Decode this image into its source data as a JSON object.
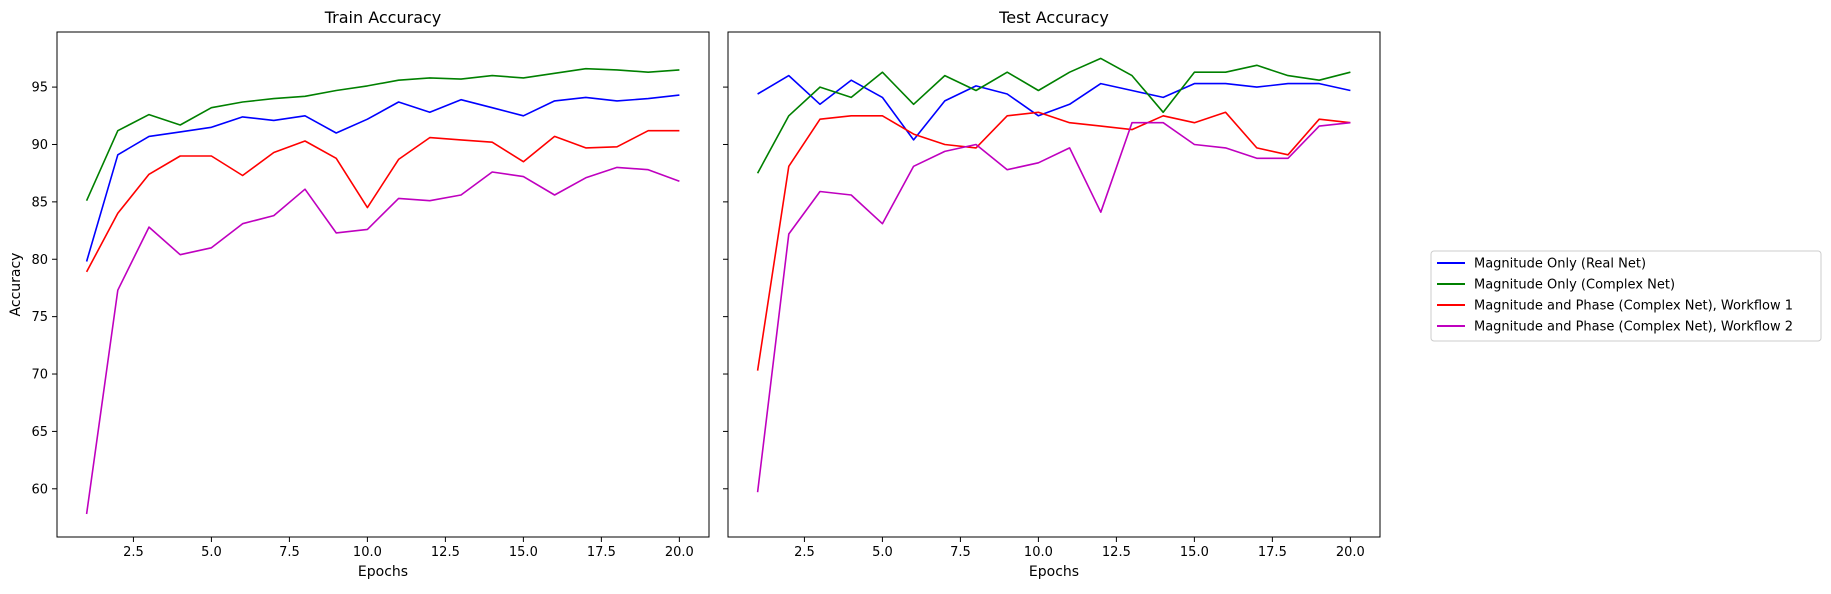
{
  "chart_data": [
    {
      "type": "line",
      "title": "Train Accuracy",
      "xlabel": "Epochs",
      "ylabel": "Accuracy",
      "xlim": [
        0.05,
        20.95
      ],
      "ylim": [
        55.8,
        99.8
      ],
      "xticks": [
        "2.5",
        "5.0",
        "7.5",
        "10.0",
        "12.5",
        "15.0",
        "17.5",
        "20.0"
      ],
      "yticks": [
        "60",
        "65",
        "70",
        "75",
        "80",
        "85",
        "90",
        "95"
      ],
      "grid": false,
      "x": [
        1,
        2,
        3,
        4,
        5,
        6,
        7,
        8,
        9,
        10,
        11,
        12,
        13,
        14,
        15,
        16,
        17,
        18,
        19,
        20
      ],
      "series": [
        {
          "name": "Magnitude Only (Real Net)",
          "color": "#0000ff",
          "values": [
            79.8,
            89.1,
            90.7,
            91.1,
            91.5,
            92.4,
            92.1,
            92.5,
            91.0,
            92.2,
            93.7,
            92.8,
            93.9,
            93.2,
            92.5,
            93.8,
            94.1,
            93.8,
            94.0,
            94.3
          ]
        },
        {
          "name": "Magnitude Only (Complex Net)",
          "color": "#008000",
          "values": [
            85.1,
            91.2,
            92.6,
            91.7,
            93.2,
            93.7,
            94.0,
            94.2,
            94.7,
            95.1,
            95.6,
            95.8,
            95.7,
            96.0,
            95.8,
            96.2,
            96.6,
            96.5,
            96.3,
            96.5
          ]
        },
        {
          "name": "Magnitude and Phase (Complex Net), Workflow 1",
          "color": "#ff0000",
          "values": [
            78.9,
            84.0,
            87.4,
            89.0,
            89.0,
            87.3,
            89.3,
            90.3,
            88.8,
            84.5,
            88.7,
            90.6,
            90.4,
            90.2,
            88.5,
            90.7,
            89.7,
            89.8,
            91.2,
            91.2
          ]
        },
        {
          "name": "Magnitude and Phase (Complex Net), Workflow 2",
          "color": "#bf00bf",
          "values": [
            57.8,
            77.3,
            82.8,
            80.4,
            81.0,
            83.1,
            83.8,
            86.1,
            82.3,
            82.6,
            85.3,
            85.1,
            85.6,
            87.6,
            87.2,
            85.6,
            87.1,
            88.0,
            87.8,
            86.8
          ]
        }
      ]
    },
    {
      "type": "line",
      "title": "Test Accuracy",
      "xlabel": "Epochs",
      "ylabel": "",
      "xlim": [
        0.05,
        20.95
      ],
      "ylim": [
        55.8,
        99.8
      ],
      "xticks": [
        "2.5",
        "5.0",
        "7.5",
        "10.0",
        "12.5",
        "15.0",
        "17.5",
        "20.0"
      ],
      "yticks": [
        "",
        "",
        "",
        "",
        "",
        "",
        "",
        ""
      ],
      "grid": false,
      "x": [
        1,
        2,
        3,
        4,
        5,
        6,
        7,
        8,
        9,
        10,
        11,
        12,
        13,
        14,
        15,
        16,
        17,
        18,
        19,
        20
      ],
      "series": [
        {
          "name": "Magnitude Only (Real Net)",
          "color": "#0000ff",
          "values": [
            94.4,
            96.0,
            93.5,
            95.6,
            94.1,
            90.4,
            93.8,
            95.1,
            94.4,
            92.5,
            93.5,
            95.3,
            94.7,
            94.1,
            95.3,
            95.3,
            95.0,
            95.3,
            95.3,
            94.7
          ]
        },
        {
          "name": "Magnitude Only (Complex Net)",
          "color": "#008000",
          "values": [
            87.5,
            92.5,
            95.0,
            94.1,
            96.3,
            93.5,
            96.0,
            94.7,
            96.3,
            94.7,
            96.3,
            97.5,
            96.0,
            92.8,
            96.3,
            96.3,
            96.9,
            96.0,
            95.6,
            96.3
          ]
        },
        {
          "name": "Magnitude and Phase (Complex Net), Workflow 1",
          "color": "#ff0000",
          "values": [
            70.3,
            88.1,
            92.2,
            92.5,
            92.5,
            90.9,
            90.0,
            89.7,
            92.5,
            92.8,
            91.9,
            91.6,
            91.3,
            92.5,
            91.9,
            92.8,
            89.7,
            89.1,
            92.2,
            91.9
          ]
        },
        {
          "name": "Magnitude and Phase (Complex Net), Workflow 2",
          "color": "#bf00bf",
          "values": [
            59.7,
            82.2,
            85.9,
            85.6,
            83.1,
            88.1,
            89.4,
            90.0,
            87.8,
            88.4,
            89.7,
            84.1,
            91.9,
            91.9,
            90.0,
            89.7,
            88.8,
            88.8,
            91.6,
            91.9
          ]
        }
      ]
    }
  ],
  "legend": {
    "placement": "right",
    "entries": [
      {
        "label": "Magnitude Only (Real Net)",
        "color": "#0000ff"
      },
      {
        "label": "Magnitude Only (Complex Net)",
        "color": "#008000"
      },
      {
        "label": "Magnitude and Phase (Complex Net), Workflow 1",
        "color": "#ff0000"
      },
      {
        "label": "Magnitude and Phase (Complex Net), Workflow 2",
        "color": "#bf00bf"
      }
    ]
  }
}
